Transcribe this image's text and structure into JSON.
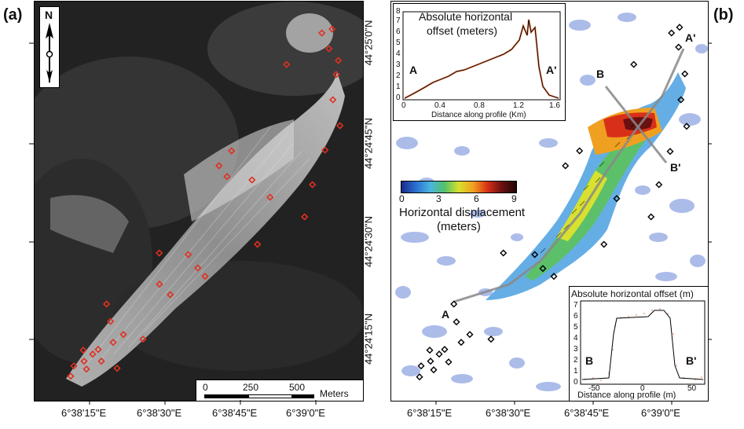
{
  "panel_a": {
    "label": "(a)",
    "north_label": "N",
    "scale_bar": {
      "ticks": [
        "0",
        "250",
        "500"
      ],
      "unit": "Meters"
    },
    "lon_labels": [
      "6°38'15\"E",
      "6°38'30\"E",
      "6°38'45\"E",
      "6°39'0\"E"
    ]
  },
  "panel_b": {
    "label": "(b)",
    "lon_labels": [
      "6°38'15\"E",
      "6°38'30\"E",
      "6°38'45\"E",
      "6°39'0\"E"
    ],
    "lat_labels": [
      "44°25'0\"N",
      "44°24'45\"N",
      "44°24'30\"N",
      "44°24'15\"N"
    ],
    "profile_labels": {
      "A": "A",
      "A_prime": "A'",
      "B": "B",
      "B_prime": "B'"
    },
    "colorbar": {
      "ticks": [
        "0",
        "3",
        "6",
        "9"
      ],
      "title_line1": "Horizontal displacement",
      "title_line2": "(meters)",
      "colors": [
        "#1a2a8a",
        "#2a6fd0",
        "#49b4e0",
        "#52c06b",
        "#d7e12c",
        "#f0a020",
        "#d83018",
        "#6a1010",
        "#200808"
      ]
    },
    "inset_top": {
      "title_line1": "Absolute horizontal",
      "title_line2": "offset (meters)",
      "xlabel": "Distance along profile (Km)",
      "x_ticks": [
        "0",
        "0.4",
        "0.8",
        "1.2",
        "1.6"
      ],
      "y_ticks": [
        "0",
        "1",
        "2",
        "3",
        "4",
        "5",
        "6",
        "7",
        "8"
      ],
      "end_left": "A",
      "end_right": "A'"
    },
    "inset_bottom": {
      "title": "Absolute horizontal offset (m)",
      "xlabel": "Distance along profile (m)",
      "x_ticks": [
        "-50",
        "0",
        "50"
      ],
      "y_ticks": [
        "0",
        "1",
        "2",
        "3",
        "4",
        "5",
        "6",
        "7"
      ],
      "end_left": "B",
      "end_right": "B'"
    }
  }
}
